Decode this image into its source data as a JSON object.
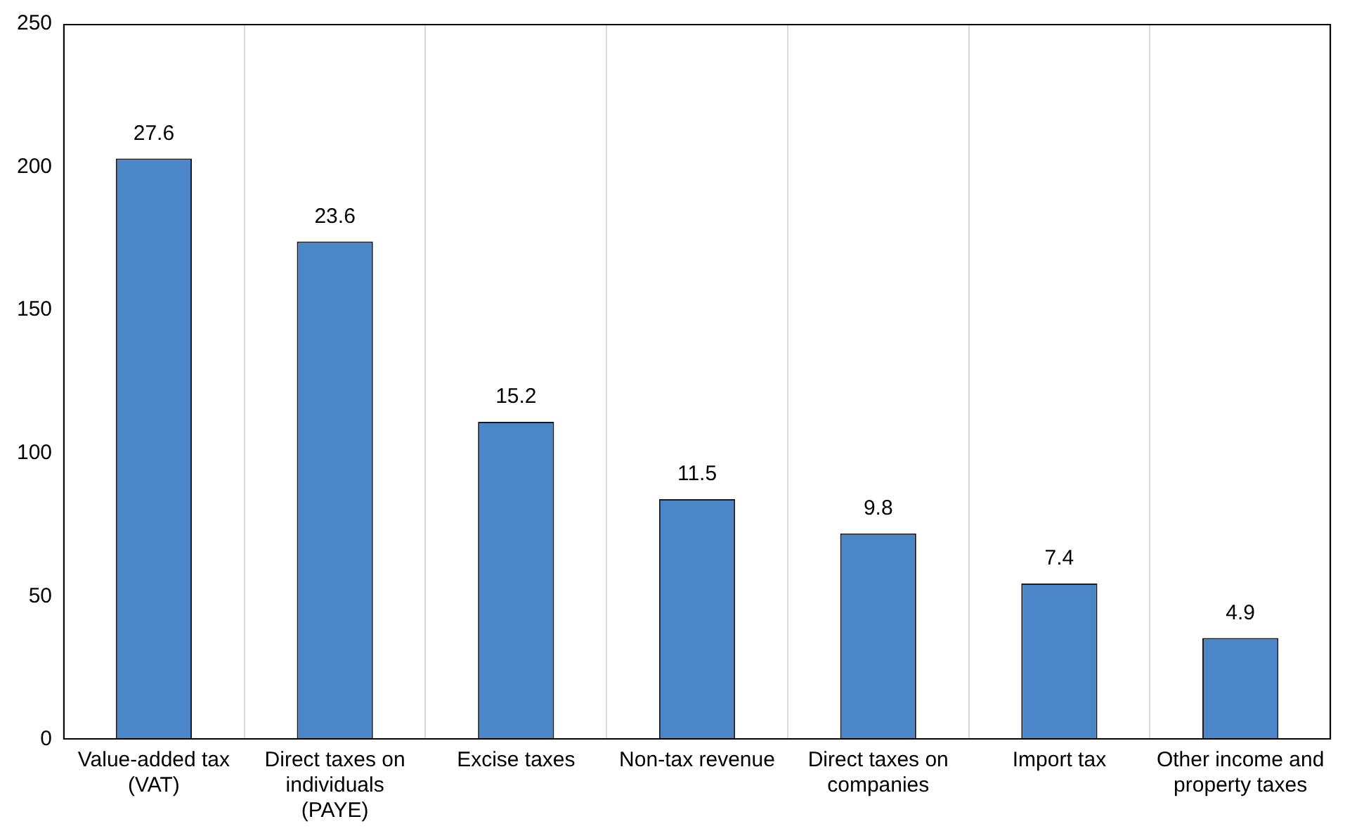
{
  "chart_data": {
    "type": "bar",
    "categories": [
      "Value-added tax (VAT)",
      "Direct taxes on individuals (PAYE)",
      "Excise taxes",
      "Non-tax revenue",
      "Direct taxes on companies",
      "Import tax",
      "Other income and property taxes"
    ],
    "values": [
      203,
      174,
      111,
      84,
      72,
      54.5,
      35.5
    ],
    "annotations": [
      {
        "text": "27.6",
        "x": "Value-added tax (VAT)",
        "y": 203
      },
      {
        "text": "23.6",
        "x": "Direct taxes on individuals (PAYE)",
        "y": 174
      },
      {
        "text": "15.2",
        "x": "Excise taxes",
        "y": 111
      },
      {
        "text": "11.5",
        "x": "Non-tax revenue",
        "y": 84
      },
      {
        "text": "9.8",
        "x": "Direct taxes on companies",
        "y": 72
      },
      {
        "text": "7.4",
        "x": "Import tax",
        "y": 54.5
      },
      {
        "text": "4.9",
        "x": "Other income and property taxes",
        "y": 35.5
      }
    ],
    "color": "#4a86c8",
    "ylim": [
      0,
      250
    ],
    "yticks": [
      0,
      50,
      100,
      150,
      200,
      250
    ],
    "grid": "x",
    "legend": false
  }
}
